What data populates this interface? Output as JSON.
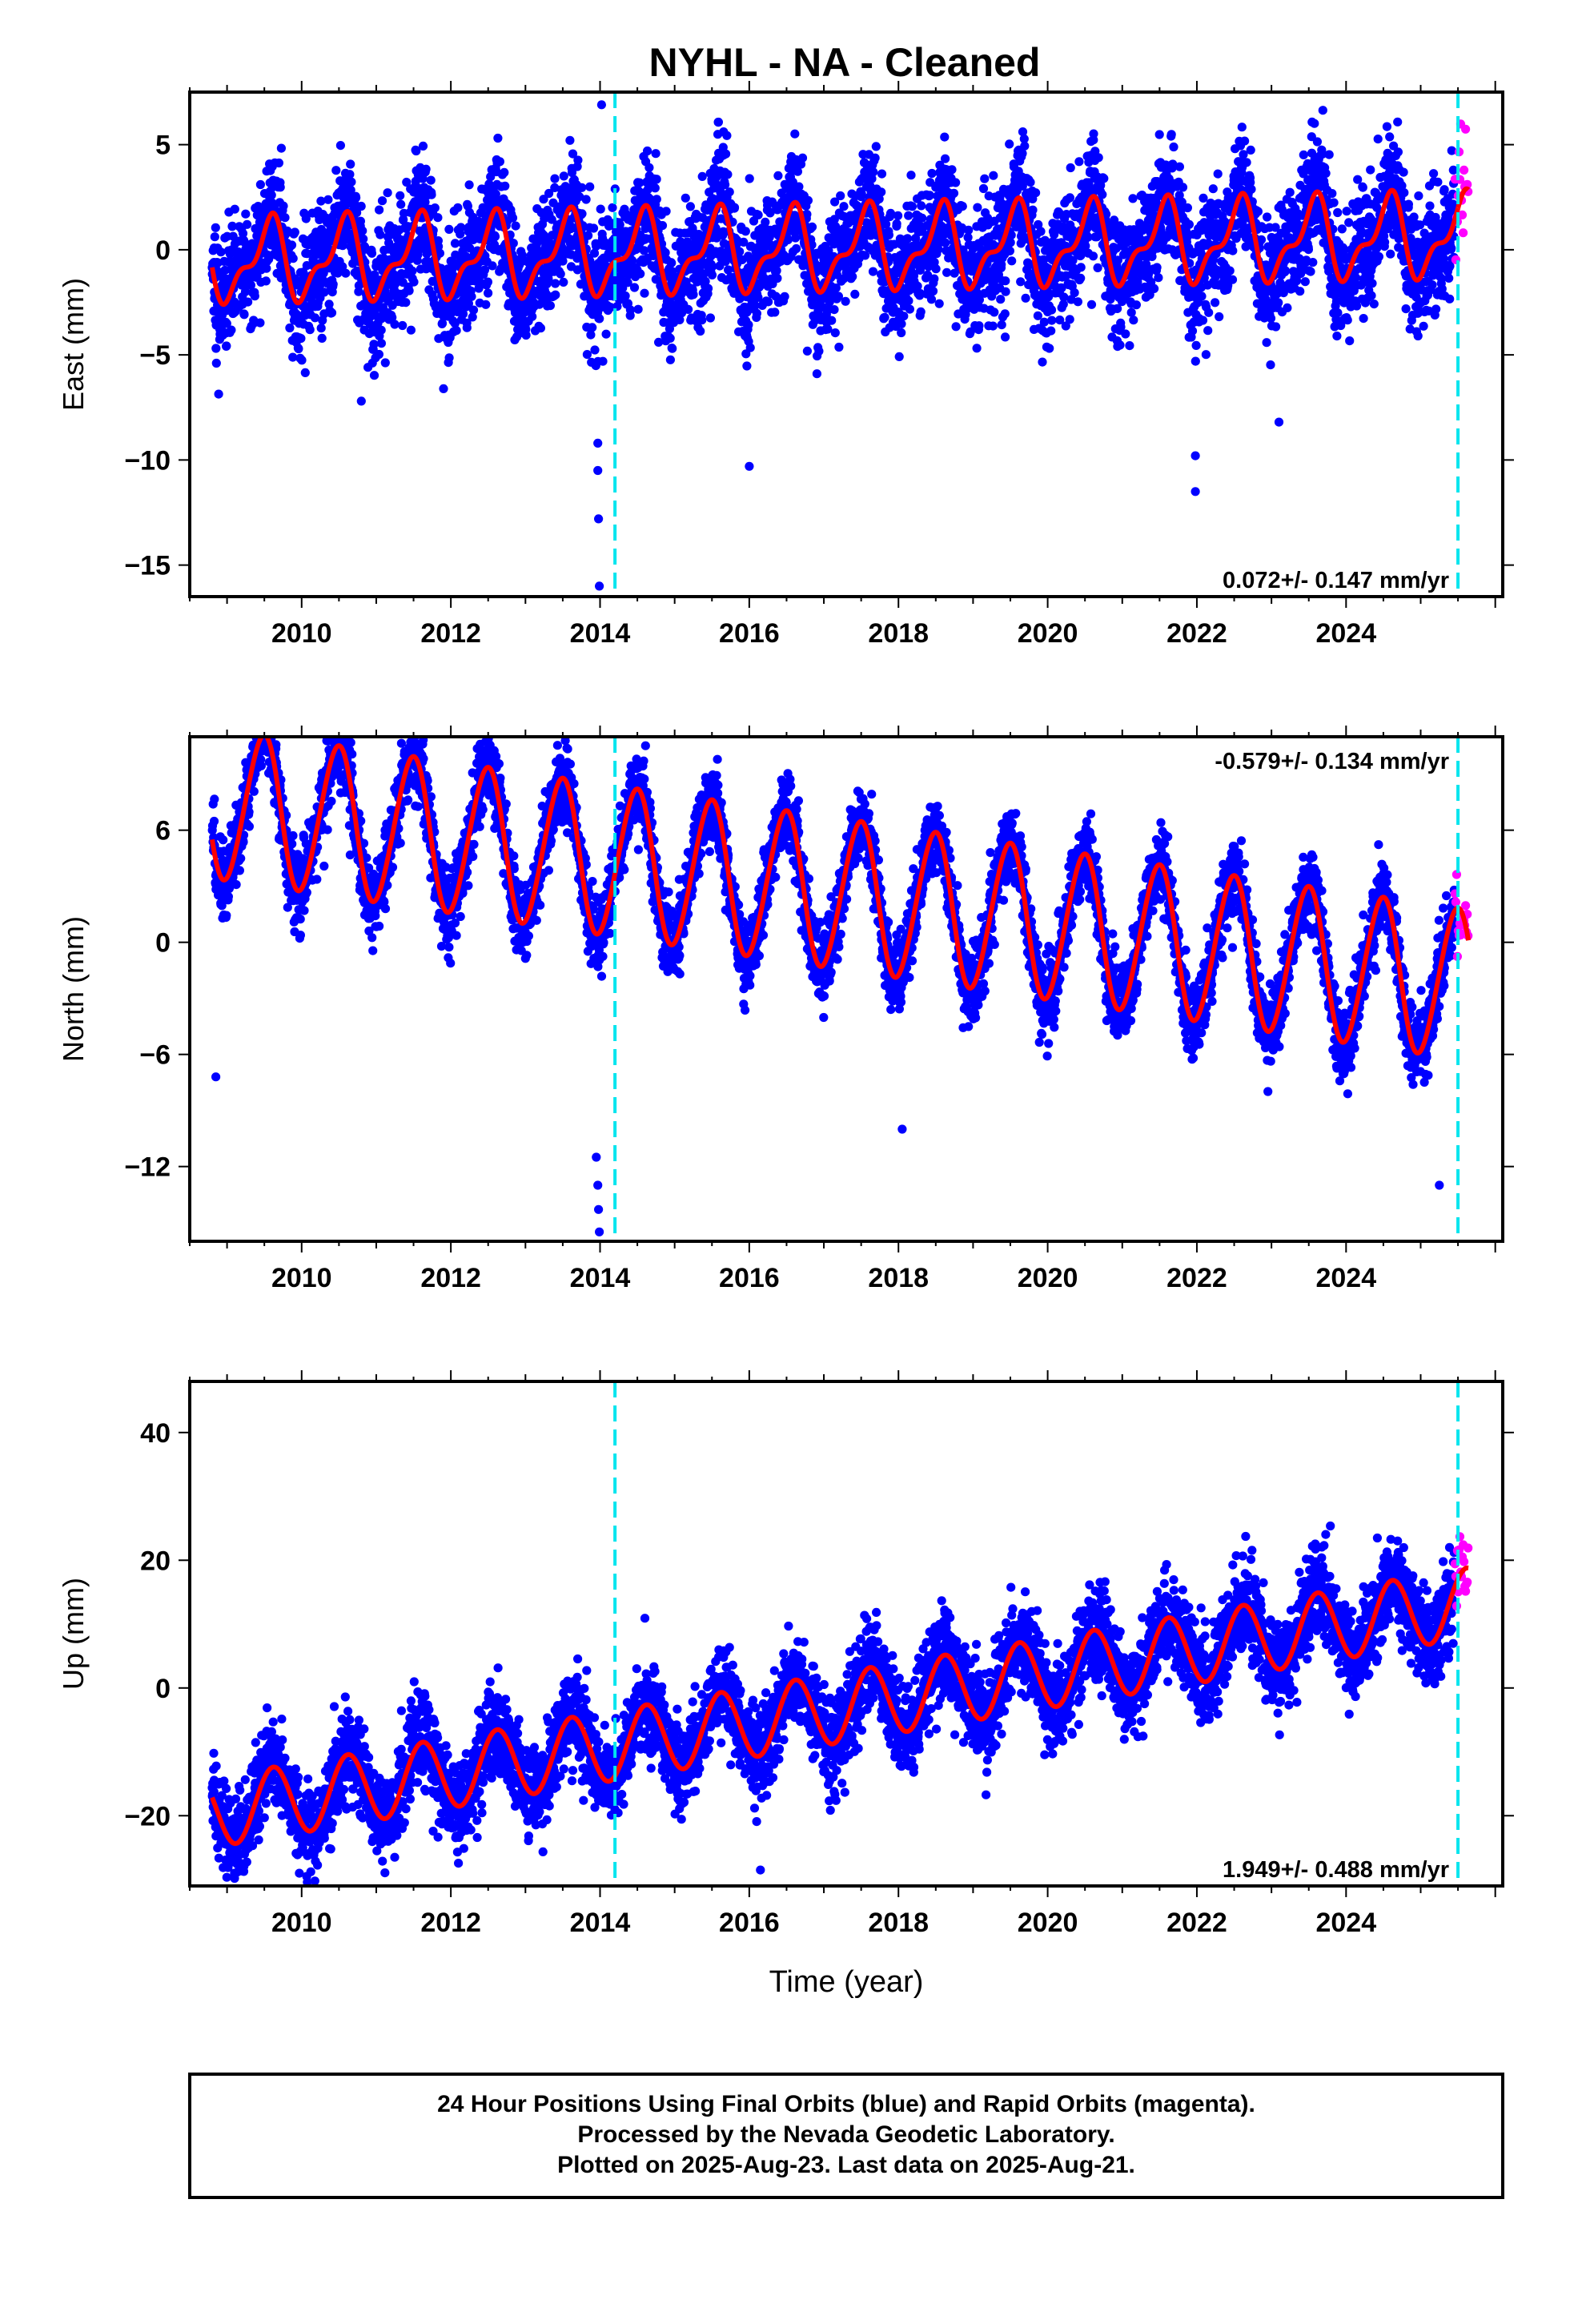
{
  "title": "NYHL  - NA - Cleaned",
  "x_axis_label": "Time (year)",
  "colors": {
    "final_orbits": "#0000ff",
    "rapid_orbits": "#ff00ff",
    "model_fit": "#ff0000",
    "equipment_change": "#00e5ee",
    "frame": "#000000"
  },
  "footer": {
    "line1": "24 Hour Positions Using Final Orbits (blue) and Rapid Orbits (magenta).",
    "line2": "Processed by the Nevada Geodetic Laboratory.",
    "line3": "Plotted on 2025-Aug-23. Last data on 2025-Aug-21."
  },
  "chart_data": [
    {
      "type": "scatter",
      "component": "east",
      "ylabel": "East (mm)",
      "xlim": [
        2008.5,
        2026.1
      ],
      "ylim": [
        -16.5,
        7.5
      ],
      "x_ticks": [
        2010,
        2012,
        2014,
        2016,
        2018,
        2020,
        2022,
        2024
      ],
      "y_ticks": [
        5,
        0,
        -5,
        -10,
        -15
      ],
      "rate_label": "0.072+/- 0.147 mm/yr",
      "rate_position": "bottom-right",
      "rate_mm_per_yr": 0.072,
      "rate_uncertainty": 0.147,
      "offset_lines_x": [
        2014.2,
        2025.5
      ],
      "data_start": 2008.8,
      "final_end": 2025.45,
      "rapid_end": 2025.64,
      "model": {
        "intercept": 0.0,
        "annual_amplitude": 1.7,
        "annual_phase": 0.55,
        "semiannual_amplitude": 0.8,
        "semiannual_phase": 0.15
      },
      "scatter_sd": 1.4,
      "outliers": [
        [
          2013.97,
          -9.2
        ],
        [
          2013.97,
          -10.5
        ],
        [
          2013.98,
          -12.8
        ],
        [
          2013.99,
          -16.0
        ],
        [
          2014.02,
          6.9
        ],
        [
          2016.0,
          -10.3
        ],
        [
          2021.98,
          -9.8
        ],
        [
          2021.98,
          -11.5
        ],
        [
          2023.1,
          -8.2
        ],
        [
          2010.8,
          -7.2
        ]
      ]
    },
    {
      "type": "scatter",
      "component": "north",
      "ylabel": "North (mm)",
      "xlim": [
        2008.5,
        2026.1
      ],
      "ylim": [
        -16,
        11
      ],
      "x_ticks": [
        2010,
        2012,
        2014,
        2016,
        2018,
        2020,
        2022,
        2024
      ],
      "y_ticks": [
        6,
        0,
        -6,
        -12
      ],
      "rate_label": "-0.579+/- 0.134 mm/yr",
      "rate_position": "top-right",
      "rate_mm_per_yr": -0.579,
      "rate_uncertainty": 0.134,
      "offset_lines_x": [
        2014.2,
        2025.5
      ],
      "data_start": 2008.8,
      "final_end": 2025.45,
      "rapid_end": 2025.64,
      "model": {
        "intercept": 2.7,
        "annual_amplitude": 4.0,
        "annual_phase": 0.48,
        "semiannual_amplitude": 0.3,
        "semiannual_phase": 0.1
      },
      "scatter_sd": 1.0,
      "outliers": [
        [
          2008.85,
          -7.2
        ],
        [
          2013.95,
          -11.5
        ],
        [
          2013.97,
          -13.0
        ],
        [
          2013.98,
          -14.3
        ],
        [
          2013.99,
          -15.5
        ],
        [
          2018.05,
          -10.0
        ],
        [
          2025.25,
          -13.0
        ]
      ]
    },
    {
      "type": "scatter",
      "component": "up",
      "ylabel": "Up (mm)",
      "xlim": [
        2008.5,
        2026.1
      ],
      "ylim": [
        -31,
        48
      ],
      "x_ticks": [
        2010,
        2012,
        2014,
        2016,
        2018,
        2020,
        2022,
        2024
      ],
      "y_ticks": [
        40,
        20,
        0,
        -20
      ],
      "rate_label": "1.949+/- 0.488 mm/yr",
      "rate_position": "bottom-right",
      "rate_mm_per_yr": 1.949,
      "rate_uncertainty": 0.488,
      "offset_lines_x": [
        2014.2,
        2025.5
      ],
      "data_start": 2008.8,
      "final_end": 2025.45,
      "rapid_end": 2025.64,
      "model": {
        "intercept": -3.5,
        "annual_amplitude": 5.5,
        "annual_phase": 0.62,
        "semiannual_amplitude": 0.0,
        "semiannual_phase": 0.0
      },
      "scatter_sd": 3.5,
      "outliers": [
        [
          2009.1,
          -29.0
        ],
        [
          2016.15,
          -28.5
        ],
        [
          2014.2,
          -19.0
        ]
      ]
    }
  ]
}
